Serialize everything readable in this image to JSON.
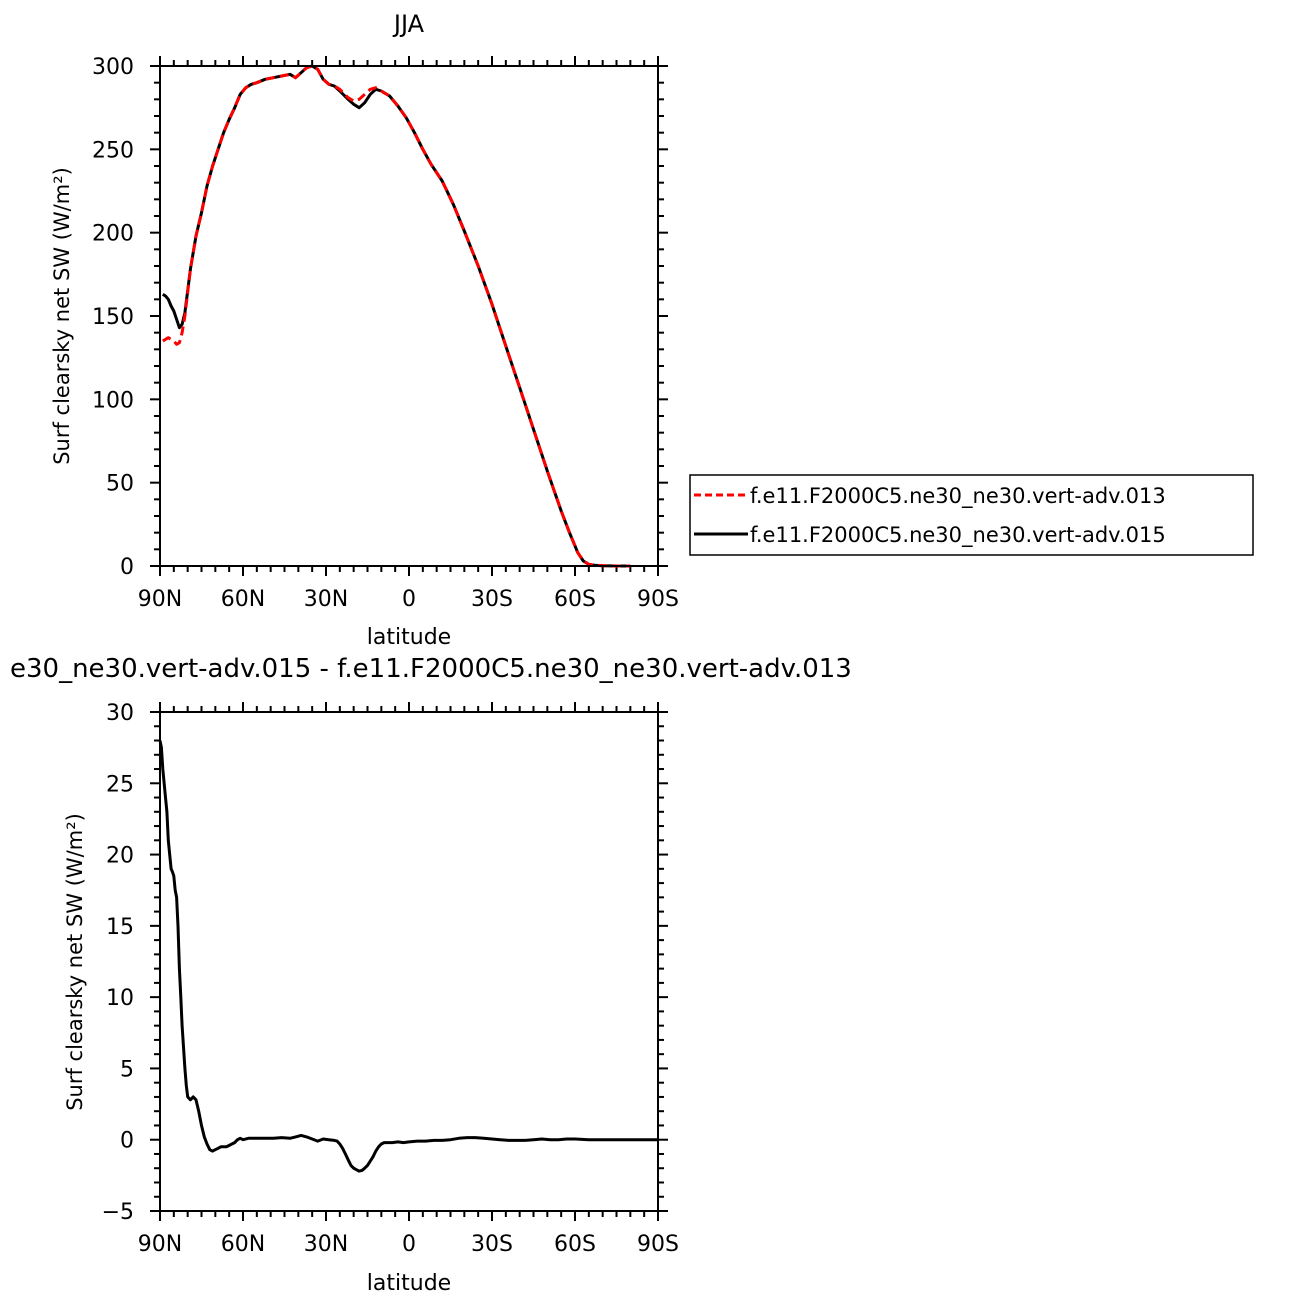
{
  "chart_data": [
    {
      "type": "line",
      "title": "JJA",
      "xlabel": "latitude",
      "ylabel": "Surf clearsky net SW (W/m²)",
      "xlim": [
        90,
        -90
      ],
      "ylim": [
        0,
        300
      ],
      "x_tick_values": [
        90,
        60,
        30,
        0,
        -30,
        -60,
        -90
      ],
      "x_tick_labels": [
        "90N",
        "60N",
        "30N",
        "0",
        "30S",
        "60S",
        "90S"
      ],
      "y_tick_values": [
        0,
        50,
        100,
        150,
        200,
        250,
        300
      ],
      "y_tick_labels": [
        "0",
        "50",
        "100",
        "150",
        "200",
        "250",
        "300"
      ],
      "grid": false,
      "legend_position": "right",
      "series": [
        {
          "name": "f.e11.F2000C5.ne30_ne30.vert-adv.013",
          "color": "#ff0000",
          "dash": "dashed",
          "x": [
            89,
            87,
            85,
            84,
            83,
            82,
            81,
            79,
            77,
            75,
            73,
            71,
            69,
            67,
            65,
            63,
            61,
            59,
            57,
            55,
            52,
            49,
            46,
            43,
            41,
            39,
            37,
            35,
            33,
            31,
            29,
            27,
            25,
            22,
            20,
            18,
            16,
            14,
            12,
            10,
            7,
            4,
            1,
            -2,
            -5,
            -8,
            -12,
            -16,
            -20,
            -25,
            -30,
            -35,
            -40,
            -45,
            -50,
            -55,
            -58,
            -61,
            -63,
            -65,
            -67,
            -70,
            -75,
            -80
          ],
          "y": [
            135,
            137,
            135,
            133,
            134,
            140,
            150,
            178,
            198,
            212,
            228,
            240,
            250,
            260,
            268,
            275,
            283,
            287,
            289,
            290,
            292,
            293,
            294,
            295,
            293,
            296,
            299,
            300,
            298,
            292,
            289,
            288,
            286,
            281,
            279,
            280,
            283,
            286,
            287,
            285,
            282,
            276,
            269,
            260,
            250,
            241,
            231,
            217,
            201,
            180,
            157,
            132,
            107,
            82,
            57,
            33,
            20,
            8,
            3,
            1,
            0.5,
            0.2,
            0,
            0
          ]
        },
        {
          "name": "f.e11.F2000C5.ne30_ne30.vert-adv.015",
          "color": "#000000",
          "dash": "solid",
          "x": [
            89,
            88,
            87,
            86,
            85,
            84,
            83,
            82,
            81,
            79,
            77,
            75,
            73,
            71,
            69,
            67,
            65,
            63,
            61,
            59,
            57,
            55,
            52,
            49,
            46,
            43,
            41,
            39,
            37,
            35,
            33,
            31,
            29,
            27,
            25,
            22,
            20,
            18,
            16,
            14,
            12,
            10,
            7,
            4,
            1,
            -2,
            -5,
            -8,
            -12,
            -16,
            -20,
            -25,
            -30,
            -35,
            -40,
            -45,
            -50,
            -55,
            -58,
            -61,
            -63,
            -65,
            -67,
            -70,
            -75,
            -80
          ],
          "y": [
            163,
            162,
            160,
            156,
            153,
            148,
            143,
            145,
            152,
            178,
            198,
            212,
            228,
            240,
            250,
            260,
            268,
            275,
            283,
            287,
            289,
            290,
            292,
            293,
            294,
            295,
            293,
            296,
            299,
            300,
            298,
            292,
            289,
            288,
            285,
            280,
            277,
            275,
            278,
            283,
            286,
            285,
            282,
            276,
            269,
            260,
            250,
            241,
            231,
            217,
            201,
            180,
            157,
            132,
            107,
            82,
            57,
            33,
            20,
            8,
            3,
            1,
            0.5,
            0.2,
            0,
            0
          ]
        }
      ]
    },
    {
      "type": "line",
      "title": "e30_ne30.vert-adv.015 - f.e11.F2000C5.ne30_ne30.vert-adv.013",
      "xlabel": "latitude",
      "ylabel": "Surf clearsky net SW (W/m²)",
      "xlim": [
        90,
        -90
      ],
      "ylim": [
        -5,
        30
      ],
      "x_tick_values": [
        90,
        60,
        30,
        0,
        -30,
        -60,
        -90
      ],
      "x_tick_labels": [
        "90N",
        "60N",
        "30N",
        "0",
        "30S",
        "60S",
        "90S"
      ],
      "y_tick_values": [
        -5,
        0,
        5,
        10,
        15,
        20,
        25,
        30
      ],
      "y_tick_labels": [
        "−5",
        "0",
        "5",
        "10",
        "15",
        "20",
        "25",
        "30"
      ],
      "grid": false,
      "series": [
        {
          "color": "#000000",
          "dash": "solid",
          "x": [
            90,
            89.5,
            89,
            88,
            87.5,
            87,
            86.5,
            86,
            85.5,
            85,
            84.5,
            84,
            83.5,
            83,
            82.5,
            82,
            81.5,
            81,
            80.5,
            80,
            79,
            78,
            77,
            76,
            75,
            74,
            73,
            72,
            71,
            70,
            69,
            68,
            67,
            66,
            65,
            64,
            63,
            62,
            61,
            60,
            58,
            55,
            52,
            49,
            46,
            43,
            41,
            39,
            37,
            35,
            33,
            31,
            29,
            27,
            26,
            25,
            24,
            23,
            22,
            21,
            20,
            19,
            18,
            17,
            16,
            15,
            14,
            13,
            12,
            11,
            10,
            9,
            8,
            6,
            4,
            2,
            0,
            -3,
            -6,
            -9,
            -12,
            -15,
            -18,
            -21,
            -24,
            -27,
            -30,
            -33,
            -36,
            -39,
            -42,
            -45,
            -48,
            -51,
            -54,
            -57,
            -60,
            -65,
            -70,
            -75,
            -80,
            -85,
            -90
          ],
          "y": [
            28,
            27.5,
            26,
            24,
            23,
            21,
            20,
            19,
            18.8,
            18.5,
            17.5,
            17,
            15,
            12,
            10,
            8,
            6.5,
            5,
            3.8,
            3,
            2.8,
            3,
            2.8,
            2,
            1,
            0.2,
            -0.3,
            -0.7,
            -0.8,
            -0.7,
            -0.6,
            -0.5,
            -0.5,
            -0.5,
            -0.4,
            -0.3,
            -0.2,
            0,
            0.1,
            0,
            0.1,
            0.1,
            0.1,
            0.1,
            0.15,
            0.1,
            0.2,
            0.3,
            0.2,
            0.05,
            -0.1,
            0.05,
            0,
            -0.05,
            -0.1,
            -0.3,
            -0.6,
            -1,
            -1.4,
            -1.8,
            -2,
            -2.1,
            -2.2,
            -2.15,
            -2.0,
            -1.8,
            -1.5,
            -1.2,
            -0.8,
            -0.5,
            -0.3,
            -0.2,
            -0.2,
            -0.2,
            -0.15,
            -0.2,
            -0.15,
            -0.1,
            -0.1,
            -0.05,
            -0.05,
            0,
            0.1,
            0.15,
            0.15,
            0.1,
            0.05,
            0,
            -0.05,
            -0.05,
            -0.05,
            0,
            0.05,
            0,
            0,
            0.05,
            0.05,
            0,
            0,
            0,
            0,
            0,
            0
          ]
        }
      ]
    }
  ]
}
